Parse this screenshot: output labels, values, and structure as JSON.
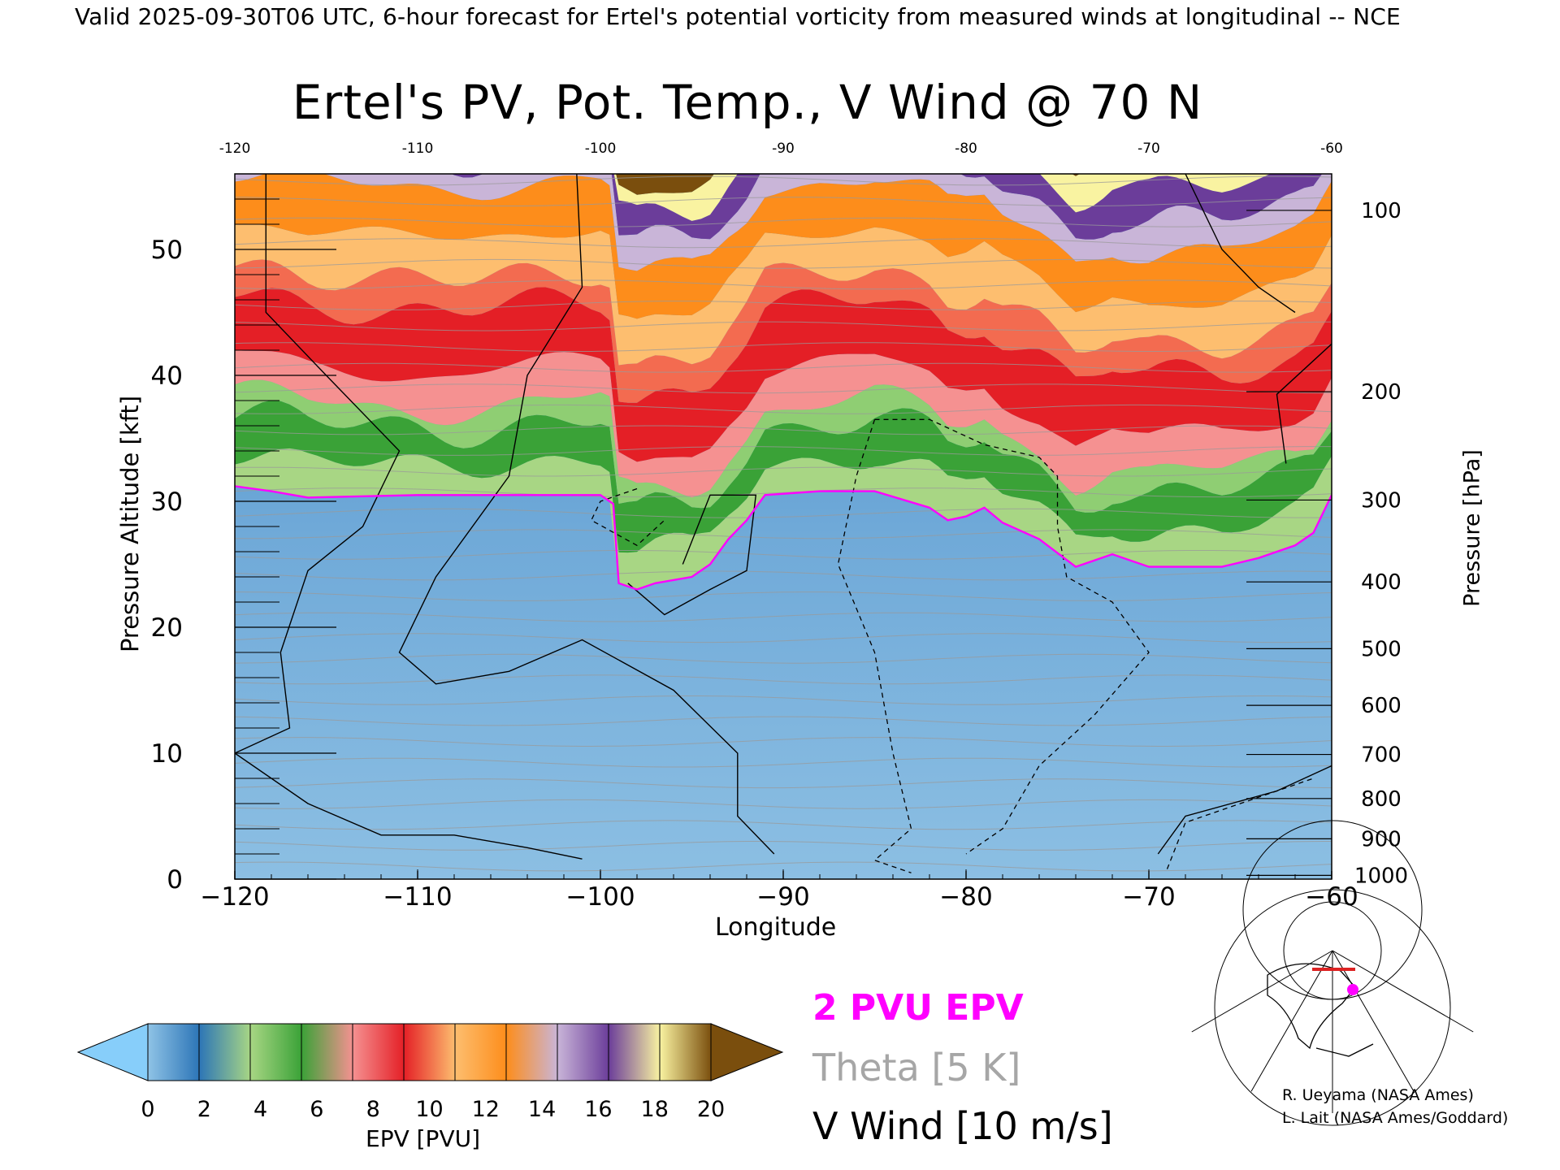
{
  "header": "Valid 2025-09-30T06 UTC, 6-hour forecast for Ertel's potential vorticity from measured winds at longitudinal -- NCE",
  "chart_data": {
    "type": "heatmap",
    "title": "Ertel's PV, Pot. Temp., V Wind @ 70 N",
    "xlabel": "Longitude",
    "ylabel": "Pressure Altitude [kft]",
    "y2label": "Pressure [hPa]",
    "xlim": [
      -120,
      -60
    ],
    "ylim": [
      0,
      56
    ],
    "x_ticks": [
      "−120",
      "−110",
      "−100",
      "−90",
      "−80",
      "−70",
      "−60"
    ],
    "x_top_ticks": [
      "-120",
      "-110",
      "-100",
      "-90",
      "-80",
      "-70",
      "-60"
    ],
    "y_ticks": [
      0,
      10,
      20,
      30,
      40,
      50
    ],
    "y2_ticks": [
      {
        "label": "100",
        "kft": 53.1
      },
      {
        "label": "200",
        "kft": 38.7
      },
      {
        "label": "300",
        "kft": 30.1
      },
      {
        "label": "400",
        "kft": 23.6
      },
      {
        "label": "500",
        "kft": 18.3
      },
      {
        "label": "600",
        "kft": 13.8
      },
      {
        "label": "700",
        "kft": 9.9
      },
      {
        "label": "800",
        "kft": 6.4
      },
      {
        "label": "900",
        "kft": 3.2
      },
      {
        "label": "1000",
        "kft": 0.3
      }
    ],
    "colorbar": {
      "label": "EPV [PVU]",
      "ticks": [
        "0",
        "2",
        "4",
        "6",
        "8",
        "10",
        "12",
        "14",
        "16",
        "18",
        "20"
      ],
      "colors": [
        "#8fc3e6",
        "#2c75b7",
        "#a8d684",
        "#3aa237",
        "#f59191",
        "#e41f26",
        "#fdbe6f",
        "#fd8d1b",
        "#c9b5d8",
        "#6b3d9a",
        "#f9f3a1",
        "#7a4e0d"
      ],
      "under_color": "#87cefa",
      "over_color": "#7a4e0d"
    },
    "series": [
      {
        "name": "2 PVU EPV",
        "color": "#ff00ff",
        "x": [
          -120,
          -118,
          -116,
          -110,
          -105,
          -100,
          -99.3,
          -99,
          -98,
          -97,
          -95,
          -94,
          -93,
          -92,
          -91,
          -88,
          -85,
          -82,
          -81,
          -80,
          -79,
          -78,
          -76,
          -74,
          -72,
          -70,
          -66,
          -64,
          -62,
          -61,
          -60
        ],
        "y": [
          31.2,
          30.8,
          30.3,
          30.5,
          30.5,
          30.5,
          29.8,
          23.5,
          23.0,
          23.5,
          24.0,
          25.0,
          27.0,
          28.5,
          30.5,
          30.8,
          30.8,
          29.5,
          28.5,
          28.8,
          29.5,
          28.3,
          27.0,
          24.8,
          25.8,
          24.8,
          24.8,
          25.5,
          26.5,
          27.5,
          30.5
        ]
      }
    ],
    "legend": [
      {
        "label": "2 PVU EPV",
        "color": "#ff00ff"
      },
      {
        "label": "Theta [5 K]",
        "color": "#a6a6a6"
      },
      {
        "label": "V Wind [10 m/s]",
        "color": "#000000"
      }
    ]
  },
  "credits": [
    "R. Ueyama (NASA Ames)",
    "L. Lait (NASA Ames/Goddard)"
  ]
}
